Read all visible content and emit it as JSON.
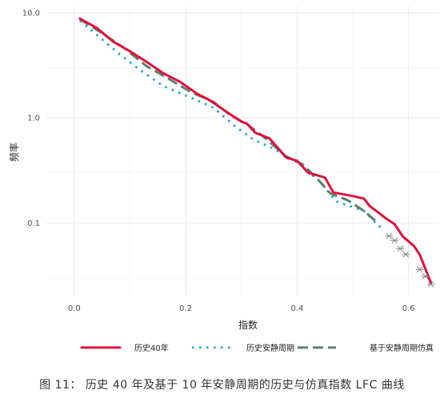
{
  "chart_data": {
    "type": "line",
    "title": "",
    "xlabel": "指数",
    "ylabel": "频率",
    "xlim": [
      -0.05,
      0.655
    ],
    "ylim": [
      0.02,
      11.5
    ],
    "y_scale": "log",
    "grid": true,
    "legend_position": "bottom",
    "x_ticks": [
      0.0,
      0.2,
      0.4,
      0.6
    ],
    "x_tick_labels": [
      "0.0",
      "0.2",
      "0.4",
      "0.6"
    ],
    "y_ticks": [
      0.1,
      1.0,
      10.0
    ],
    "y_tick_labels": [
      "0.1",
      "1.0",
      "10.0"
    ],
    "series": [
      {
        "name": "历史40年",
        "color": "#e0103c",
        "style": "solid",
        "points": [
          [
            0.01,
            8.8
          ],
          [
            0.04,
            7.2
          ],
          [
            0.07,
            5.3
          ],
          [
            0.1,
            4.3
          ],
          [
            0.13,
            3.4
          ],
          [
            0.16,
            2.65
          ],
          [
            0.19,
            2.2
          ],
          [
            0.22,
            1.7
          ],
          [
            0.24,
            1.5
          ],
          [
            0.26,
            1.28
          ],
          [
            0.28,
            1.08
          ],
          [
            0.3,
            0.92
          ],
          [
            0.31,
            0.88
          ],
          [
            0.325,
            0.72
          ],
          [
            0.35,
            0.64
          ],
          [
            0.365,
            0.52
          ],
          [
            0.38,
            0.42
          ],
          [
            0.4,
            0.39
          ],
          [
            0.42,
            0.3
          ],
          [
            0.45,
            0.27
          ],
          [
            0.465,
            0.195
          ],
          [
            0.5,
            0.18
          ],
          [
            0.52,
            0.17
          ],
          [
            0.53,
            0.145
          ],
          [
            0.56,
            0.11
          ],
          [
            0.575,
            0.097
          ],
          [
            0.59,
            0.074
          ],
          [
            0.61,
            0.06
          ],
          [
            0.62,
            0.05
          ],
          [
            0.64,
            0.027
          ]
        ]
      },
      {
        "name": "历史安静周期",
        "color": "#1ba3d6",
        "style": "dotted",
        "points": [
          [
            0.01,
            8.4
          ],
          [
            0.04,
            6.2
          ],
          [
            0.08,
            4.1
          ],
          [
            0.12,
            2.8
          ],
          [
            0.16,
            2.0
          ],
          [
            0.21,
            1.55
          ],
          [
            0.25,
            1.25
          ],
          [
            0.29,
            0.82
          ],
          [
            0.32,
            0.63
          ],
          [
            0.36,
            0.5
          ],
          [
            0.4,
            0.38
          ],
          [
            0.44,
            0.25
          ],
          [
            0.47,
            0.16
          ],
          [
            0.52,
            0.13
          ],
          [
            0.55,
            0.09
          ]
        ]
      },
      {
        "name": "基于安静周期仿真",
        "color": "#5b7f6e",
        "style": "dashed",
        "points": [
          [
            0.01,
            8.7
          ],
          [
            0.05,
            6.4
          ],
          [
            0.09,
            4.6
          ],
          [
            0.13,
            3.1
          ],
          [
            0.17,
            2.35
          ],
          [
            0.21,
            1.75
          ],
          [
            0.25,
            1.42
          ],
          [
            0.28,
            1.06
          ],
          [
            0.31,
            0.87
          ],
          [
            0.34,
            0.66
          ],
          [
            0.38,
            0.43
          ],
          [
            0.41,
            0.36
          ],
          [
            0.44,
            0.25
          ],
          [
            0.46,
            0.19
          ],
          [
            0.49,
            0.165
          ],
          [
            0.52,
            0.13
          ],
          [
            0.54,
            0.105
          ]
        ]
      },
      {
        "name": "",
        "color": "#888888",
        "style": "markers",
        "points": [
          [
            0.565,
            0.075
          ],
          [
            0.575,
            0.068
          ],
          [
            0.585,
            0.057
          ],
          [
            0.595,
            0.05
          ],
          [
            0.62,
            0.036
          ],
          [
            0.63,
            0.031
          ],
          [
            0.64,
            0.026
          ]
        ]
      }
    ]
  },
  "caption": "图 11： 历史 40 年及基于 10 年安静周期的历史与仿真指数 LFC 曲线"
}
